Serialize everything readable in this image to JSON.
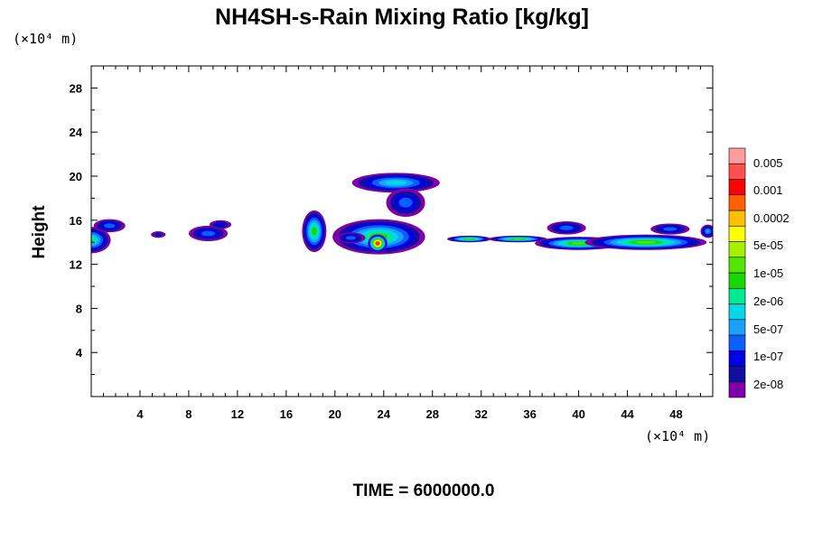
{
  "chart_data": {
    "type": "heatmap",
    "title": "NH4SH-s-Rain Mixing Ratio [kg/kg]",
    "ylabel": "Height",
    "x_unit": "(×10⁴ m)",
    "y_unit": "(×10⁴ m)",
    "xlim": [
      0,
      51
    ],
    "ylim": [
      0,
      30
    ],
    "x_ticks": [
      "4",
      "8",
      "12",
      "16",
      "20",
      "24",
      "28",
      "32",
      "36",
      "40",
      "44",
      "48"
    ],
    "x_tick_values": [
      4,
      8,
      12,
      16,
      20,
      24,
      28,
      32,
      36,
      40,
      44,
      48
    ],
    "y_ticks": [
      "4",
      "8",
      "12",
      "16",
      "20",
      "24",
      "28"
    ],
    "y_tick_values": [
      4,
      8,
      12,
      16,
      20,
      24,
      28
    ],
    "colorbar": {
      "colors": [
        "#7d00a8",
        "#1010a0",
        "#0000e6",
        "#0a5fff",
        "#1aa0ff",
        "#00d8e6",
        "#00e890",
        "#19d800",
        "#55e600",
        "#a8f000",
        "#ffff00",
        "#ffc000",
        "#ff6000",
        "#ff0000",
        "#ff4f4f",
        "#ff9c9c"
      ],
      "labels": [
        "2e-08",
        "1e-07",
        "5e-07",
        "2e-06",
        "1e-05",
        "5e-05",
        "0.0002",
        "0.001",
        "0.005"
      ]
    },
    "regions": [
      {
        "x": 0.0,
        "y": 14.2,
        "rx": 1.6,
        "ry": 1.2,
        "level": 6
      },
      {
        "x": 1.5,
        "y": 15.5,
        "rx": 1.3,
        "ry": 0.6,
        "level": 3
      },
      {
        "x": 5.5,
        "y": 14.7,
        "rx": 0.6,
        "ry": 0.3,
        "level": 1
      },
      {
        "x": 9.6,
        "y": 14.8,
        "rx": 1.6,
        "ry": 0.7,
        "level": 3
      },
      {
        "x": 10.6,
        "y": 15.6,
        "rx": 0.9,
        "ry": 0.4,
        "level": 2
      },
      {
        "x": 18.3,
        "y": 15.0,
        "rx": 1.0,
        "ry": 1.9,
        "level": 7
      },
      {
        "x": 25.0,
        "y": 19.4,
        "rx": 3.6,
        "ry": 0.9,
        "level": 5
      },
      {
        "x": 25.8,
        "y": 17.6,
        "rx": 1.6,
        "ry": 1.3,
        "level": 3
      },
      {
        "x": 23.6,
        "y": 14.5,
        "rx": 3.8,
        "ry": 1.6,
        "level": 7
      },
      {
        "x": 23.5,
        "y": 13.9,
        "rx": 0.8,
        "ry": 0.8,
        "level": 14
      },
      {
        "x": 21.3,
        "y": 14.4,
        "rx": 1.2,
        "ry": 0.5,
        "level": 3
      },
      {
        "x": 31.0,
        "y": 14.3,
        "rx": 1.8,
        "ry": 0.3,
        "level": 8
      },
      {
        "x": 35.0,
        "y": 14.3,
        "rx": 2.4,
        "ry": 0.3,
        "level": 8
      },
      {
        "x": 40.0,
        "y": 13.9,
        "rx": 3.6,
        "ry": 0.6,
        "level": 8
      },
      {
        "x": 45.5,
        "y": 14.0,
        "rx": 5.0,
        "ry": 0.7,
        "level": 8
      },
      {
        "x": 39.0,
        "y": 15.3,
        "rx": 1.6,
        "ry": 0.6,
        "level": 3
      },
      {
        "x": 47.5,
        "y": 15.2,
        "rx": 1.6,
        "ry": 0.5,
        "level": 3
      },
      {
        "x": 50.6,
        "y": 15.0,
        "rx": 0.6,
        "ry": 0.6,
        "level": 4
      }
    ]
  },
  "footer": {
    "time_label": "TIME = 6000000.0"
  }
}
